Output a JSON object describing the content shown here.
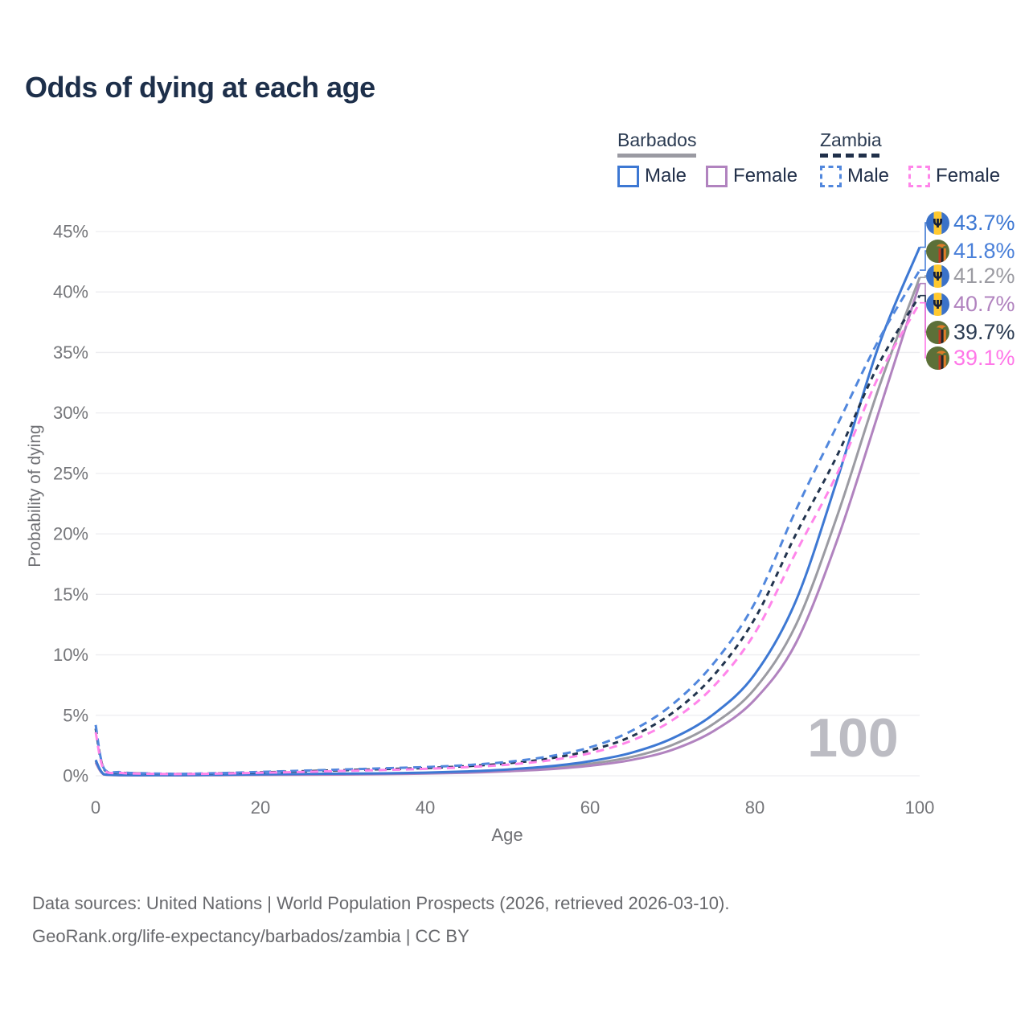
{
  "title": "Odds of dying at each age",
  "legend": {
    "groups": [
      {
        "name": "Barbados",
        "line_style": "solid",
        "underline_color": "#9a9aa2",
        "items": [
          {
            "label": "Male",
            "color": "#3d78d3"
          },
          {
            "label": "Female",
            "color": "#b183bf"
          }
        ]
      },
      {
        "name": "Zambia",
        "line_style": "dashed",
        "underline_color": "#20304a",
        "items": [
          {
            "label": "Male",
            "color": "#5187dd"
          },
          {
            "label": "Female",
            "color": "#ff85ea"
          }
        ]
      }
    ]
  },
  "watermark": "100",
  "footer": {
    "line1": "Data sources: United Nations | World Population Prospects (2026, retrieved 2026-03-10).",
    "line2": "GeoRank.org/life-expectancy/barbados/zambia | CC BY"
  },
  "end_labels": [
    {
      "flag": "barbados",
      "series": "Barbados Male",
      "value": "43.7%",
      "value_num": 43.7,
      "color": "#3d78d3"
    },
    {
      "flag": "zambia",
      "series": "Zambia Male",
      "value": "41.8%",
      "value_num": 41.8,
      "color": "#4a80d9"
    },
    {
      "flag": "barbados",
      "series": "Barbados Both",
      "value": "41.2%",
      "value_num": 41.2,
      "color": "#9b9ba2"
    },
    {
      "flag": "barbados",
      "series": "Barbados Female",
      "value": "40.7%",
      "value_num": 40.7,
      "color": "#b183bf"
    },
    {
      "flag": "zambia",
      "series": "Zambia Both",
      "value": "39.7%",
      "value_num": 39.7,
      "color": "#2b3b52"
    },
    {
      "flag": "zambia",
      "series": "Zambia Female",
      "value": "39.1%",
      "value_num": 39.1,
      "color": "#ff77e8"
    }
  ],
  "flag_colors": {
    "barbados": {
      "band_blue": "#3b72c8",
      "band_yellow": "#ffc92f",
      "trident": "#16203a"
    },
    "zambia": {
      "field_green": "#5c7038",
      "stripe_red": "#c33b23",
      "stripe_black": "#20242a",
      "stripe_orange": "#df7b28",
      "eagle_orange": "#df7b28"
    }
  },
  "chart_data": {
    "type": "line",
    "title": "Odds of dying at each age",
    "xlabel": "Age",
    "ylabel": "Probability of dying",
    "xlim": [
      0,
      100
    ],
    "ylim": [
      0,
      46
    ],
    "x_ticks": [
      0,
      20,
      40,
      60,
      80,
      100
    ],
    "y_ticks": [
      0,
      5,
      10,
      15,
      20,
      25,
      30,
      35,
      40,
      45
    ],
    "y_tick_suffix": "%",
    "grid": "horizontal",
    "legend_position": "top-right",
    "x": [
      0,
      1,
      3,
      5,
      10,
      15,
      20,
      25,
      30,
      35,
      40,
      45,
      50,
      55,
      60,
      65,
      70,
      75,
      80,
      85,
      90,
      95,
      100
    ],
    "series": [
      {
        "name": "Barbados Both sexes",
        "country": "Barbados",
        "sex": "both",
        "color": "#9b9ba2",
        "dash": false,
        "values": [
          1.2,
          0.11,
          0.05,
          0.04,
          0.04,
          0.06,
          0.09,
          0.11,
          0.13,
          0.16,
          0.21,
          0.3,
          0.44,
          0.65,
          1.0,
          1.55,
          2.55,
          4.3,
          7.2,
          12.5,
          21.5,
          32.0,
          41.2
        ]
      },
      {
        "name": "Barbados Female",
        "country": "Barbados",
        "sex": "female",
        "color": "#b183bf",
        "dash": false,
        "values": [
          1.1,
          0.1,
          0.04,
          0.03,
          0.03,
          0.05,
          0.07,
          0.08,
          0.1,
          0.13,
          0.18,
          0.25,
          0.37,
          0.54,
          0.83,
          1.3,
          2.15,
          3.7,
          6.3,
          11.0,
          19.5,
          30.0,
          40.7
        ]
      },
      {
        "name": "Barbados Male",
        "country": "Barbados",
        "sex": "male",
        "color": "#3d78d3",
        "dash": false,
        "values": [
          1.3,
          0.12,
          0.06,
          0.05,
          0.05,
          0.08,
          0.12,
          0.15,
          0.17,
          0.2,
          0.26,
          0.36,
          0.52,
          0.78,
          1.2,
          1.9,
          3.1,
          5.1,
          8.4,
          14.5,
          24.5,
          35.5,
          43.7
        ]
      },
      {
        "name": "Zambia Both sexes",
        "country": "Zambia",
        "sex": "both",
        "color": "#22344e",
        "dash": true,
        "dash_pattern": "7 6",
        "values": [
          3.9,
          0.55,
          0.27,
          0.2,
          0.15,
          0.2,
          0.28,
          0.37,
          0.46,
          0.55,
          0.64,
          0.79,
          1.03,
          1.42,
          2.1,
          3.25,
          5.2,
          8.3,
          13.0,
          20.0,
          26.5,
          34.0,
          39.7
        ]
      },
      {
        "name": "Zambia Male",
        "country": "Zambia",
        "sex": "male",
        "color": "#5187dd",
        "dash": true,
        "dash_pattern": "10 7",
        "values": [
          4.2,
          0.6,
          0.3,
          0.22,
          0.16,
          0.22,
          0.32,
          0.42,
          0.52,
          0.62,
          0.72,
          0.88,
          1.15,
          1.6,
          2.35,
          3.7,
          5.9,
          9.3,
          14.3,
          22.0,
          29.0,
          36.0,
          41.8
        ]
      },
      {
        "name": "Zambia Female",
        "country": "Zambia",
        "sex": "female",
        "color": "#ff85ea",
        "dash": true,
        "dash_pattern": "10 7",
        "values": [
          3.6,
          0.5,
          0.24,
          0.18,
          0.14,
          0.18,
          0.25,
          0.32,
          0.4,
          0.48,
          0.57,
          0.71,
          0.92,
          1.27,
          1.87,
          2.9,
          4.6,
          7.4,
          11.8,
          18.5,
          25.0,
          33.0,
          39.1
        ]
      }
    ]
  }
}
